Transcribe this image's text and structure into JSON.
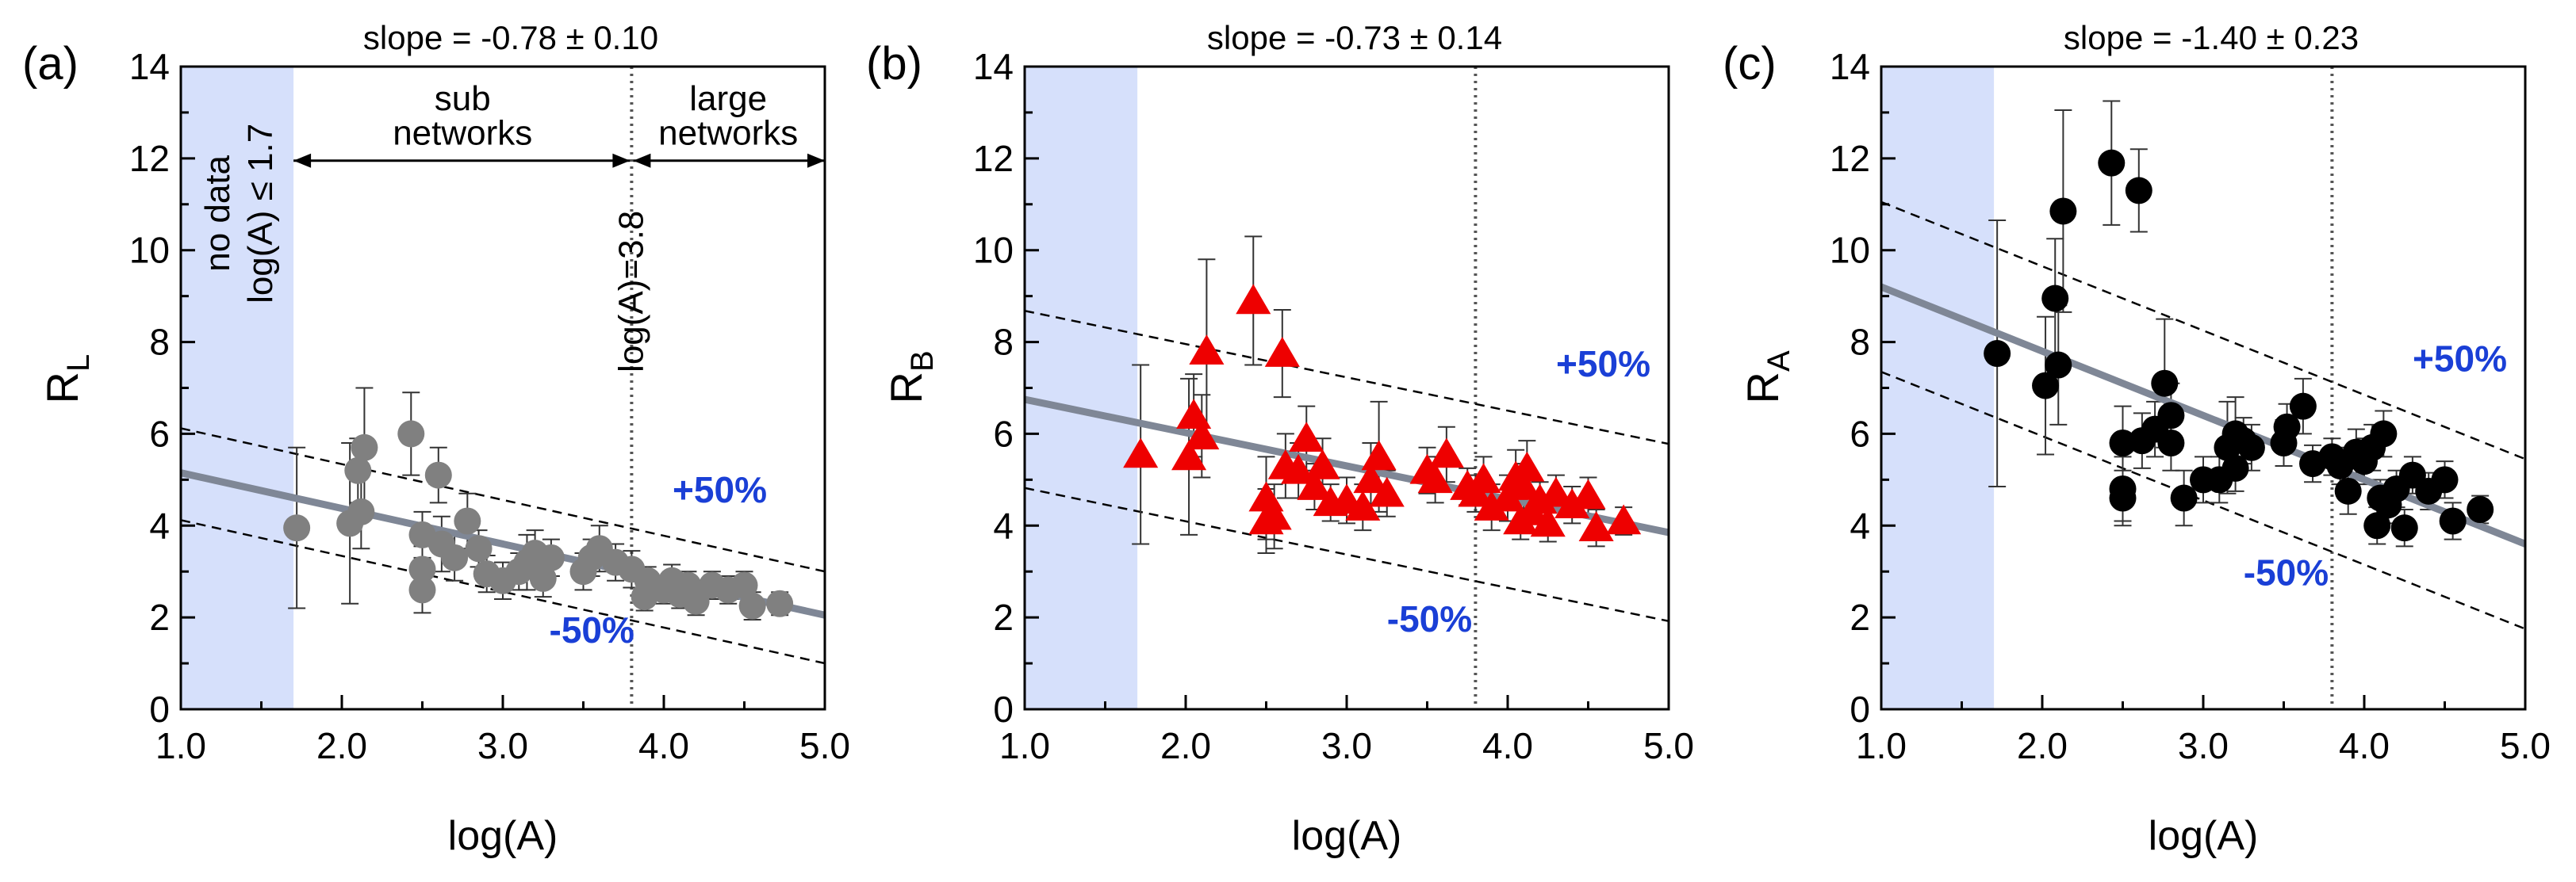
{
  "figure": {
    "x_axis_title": "log(A)",
    "x_ticks": [
      "1.0",
      "2.0",
      "3.0",
      "4.0",
      "5.0"
    ],
    "y_ticks": [
      "0",
      "2",
      "4",
      "6",
      "8",
      "10",
      "12",
      "14"
    ]
  },
  "chart_data": [
    {
      "type": "scatter",
      "panel_label": "(a)",
      "ylabel_main": "R",
      "ylabel_sub": "L",
      "xlabel": "log(A)",
      "slope_text": "slope = -0.78 ± 0.10",
      "xlim": [
        1.0,
        5.0
      ],
      "ylim": [
        0,
        14
      ],
      "color": "#808080",
      "fit_color": "#7f8796",
      "band_color": "#d6e0fb",
      "pct_color": "#1a3fd6",
      "marker": "circle",
      "no_data_band": [
        1.0,
        1.7
      ],
      "boundary_x": 3.8,
      "fit_line": {
        "x": [
          1.0,
          5.0
        ],
        "y": [
          5.15,
          2.05
        ]
      },
      "plus_line": {
        "x": [
          1.0,
          5.0
        ],
        "y": [
          6.12,
          3.0
        ]
      },
      "minus_line": {
        "x": [
          1.0,
          5.0
        ],
        "y": [
          4.12,
          1.0
        ]
      },
      "plus_label": "+50%",
      "minus_label": "-50%",
      "annotations": {
        "no_data_1": "no data",
        "no_data_2": "log(A) ≤ 1.7",
        "sub_1": "sub",
        "sub_2": "networks",
        "large_1": "large",
        "large_2": "networks",
        "boundary": "log(A)=3.8"
      },
      "points": [
        {
          "x": 1.72,
          "y": 3.95,
          "err": 1.75
        },
        {
          "x": 2.05,
          "y": 4.05,
          "err": 1.75
        },
        {
          "x": 2.1,
          "y": 5.2,
          "err": 0.7
        },
        {
          "x": 2.14,
          "y": 5.7,
          "err": 1.3
        },
        {
          "x": 2.12,
          "y": 4.3,
          "err": 0.8
        },
        {
          "x": 2.43,
          "y": 6.0,
          "err": 0.9
        },
        {
          "x": 2.5,
          "y": 3.8,
          "err": 0.5
        },
        {
          "x": 2.5,
          "y": 3.05,
          "err": 0.5
        },
        {
          "x": 2.5,
          "y": 2.6,
          "err": 0.5
        },
        {
          "x": 2.6,
          "y": 5.1,
          "err": 0.6
        },
        {
          "x": 2.62,
          "y": 3.6,
          "err": 0.6
        },
        {
          "x": 2.7,
          "y": 3.3,
          "err": 0.5
        },
        {
          "x": 2.78,
          "y": 4.1,
          "err": 0.6
        },
        {
          "x": 2.85,
          "y": 3.5,
          "err": 0.4
        },
        {
          "x": 2.9,
          "y": 2.95,
          "err": 0.4
        },
        {
          "x": 3.0,
          "y": 2.8,
          "err": 0.4
        },
        {
          "x": 3.1,
          "y": 3.0,
          "err": 0.4
        },
        {
          "x": 3.15,
          "y": 3.2,
          "err": 0.6
        },
        {
          "x": 3.2,
          "y": 3.4,
          "err": 0.5
        },
        {
          "x": 3.25,
          "y": 2.85,
          "err": 0.4
        },
        {
          "x": 3.3,
          "y": 3.3,
          "err": 0.4
        },
        {
          "x": 3.5,
          "y": 3.0,
          "err": 0.4
        },
        {
          "x": 3.55,
          "y": 3.3,
          "err": 0.4
        },
        {
          "x": 3.6,
          "y": 3.5,
          "err": 0.5
        },
        {
          "x": 3.7,
          "y": 3.2,
          "err": 0.4
        },
        {
          "x": 3.8,
          "y": 3.05,
          "err": 0.4
        },
        {
          "x": 3.88,
          "y": 2.45,
          "err": 0.3
        },
        {
          "x": 3.9,
          "y": 2.8,
          "err": 0.3
        },
        {
          "x": 4.0,
          "y": 2.6,
          "err": 0.3
        },
        {
          "x": 4.05,
          "y": 2.8,
          "err": 0.35
        },
        {
          "x": 4.1,
          "y": 2.5,
          "err": 0.3
        },
        {
          "x": 4.15,
          "y": 2.7,
          "err": 0.3
        },
        {
          "x": 4.2,
          "y": 2.35,
          "err": 0.3
        },
        {
          "x": 4.3,
          "y": 2.7,
          "err": 0.3
        },
        {
          "x": 4.4,
          "y": 2.6,
          "err": 0.3
        },
        {
          "x": 4.5,
          "y": 2.7,
          "err": 0.3
        },
        {
          "x": 4.55,
          "y": 2.25,
          "err": 0.3
        },
        {
          "x": 4.72,
          "y": 2.3,
          "err": 0.25
        }
      ]
    },
    {
      "type": "scatter",
      "panel_label": "(b)",
      "ylabel_main": "R",
      "ylabel_sub": "B",
      "xlabel": "log(A)",
      "slope_text": "slope = -0.73 ± 0.14",
      "xlim": [
        1.0,
        5.0
      ],
      "ylim": [
        0,
        14
      ],
      "color": "#ee0000",
      "fit_color": "#7f8796",
      "band_color": "#d6e0fb",
      "pct_color": "#1a3fd6",
      "marker": "triangle",
      "no_data_band": [
        1.0,
        1.7
      ],
      "boundary_x": 3.8,
      "fit_line": {
        "x": [
          1.0,
          5.0
        ],
        "y": [
          6.75,
          3.85
        ]
      },
      "plus_line": {
        "x": [
          1.0,
          5.0
        ],
        "y": [
          8.68,
          5.78
        ]
      },
      "minus_line": {
        "x": [
          1.0,
          5.0
        ],
        "y": [
          4.82,
          1.92
        ]
      },
      "plus_label": "+50%",
      "minus_label": "-50%",
      "points": [
        {
          "x": 1.72,
          "y": 5.55,
          "err": 1.95
        },
        {
          "x": 2.02,
          "y": 5.5,
          "err": 1.7
        },
        {
          "x": 2.05,
          "y": 6.4,
          "err": 0.9
        },
        {
          "x": 2.1,
          "y": 5.95,
          "err": 0.9
        },
        {
          "x": 2.13,
          "y": 7.8,
          "err": 2.0
        },
        {
          "x": 2.42,
          "y": 8.9,
          "err": 1.4
        },
        {
          "x": 2.5,
          "y": 4.6,
          "err": 0.9
        },
        {
          "x": 2.5,
          "y": 4.1,
          "err": 0.7
        },
        {
          "x": 2.55,
          "y": 4.2,
          "err": 0.7
        },
        {
          "x": 2.6,
          "y": 7.75,
          "err": 0.95
        },
        {
          "x": 2.62,
          "y": 5.3,
          "err": 0.7
        },
        {
          "x": 2.7,
          "y": 5.2,
          "err": 0.6
        },
        {
          "x": 2.75,
          "y": 5.9,
          "err": 0.7
        },
        {
          "x": 2.8,
          "y": 4.85,
          "err": 0.5
        },
        {
          "x": 2.85,
          "y": 5.3,
          "err": 0.6
        },
        {
          "x": 2.9,
          "y": 4.5,
          "err": 0.4
        },
        {
          "x": 3.0,
          "y": 4.55,
          "err": 0.5
        },
        {
          "x": 3.1,
          "y": 4.4,
          "err": 0.5
        },
        {
          "x": 3.15,
          "y": 5.0,
          "err": 0.8
        },
        {
          "x": 3.2,
          "y": 5.5,
          "err": 1.2
        },
        {
          "x": 3.25,
          "y": 4.7,
          "err": 0.5
        },
        {
          "x": 3.5,
          "y": 5.2,
          "err": 0.5
        },
        {
          "x": 3.55,
          "y": 5.0,
          "err": 0.5
        },
        {
          "x": 3.62,
          "y": 5.55,
          "err": 0.6
        },
        {
          "x": 3.75,
          "y": 4.85,
          "err": 0.4
        },
        {
          "x": 3.8,
          "y": 4.7,
          "err": 0.4
        },
        {
          "x": 3.85,
          "y": 5.0,
          "err": 0.5
        },
        {
          "x": 3.9,
          "y": 4.4,
          "err": 0.5
        },
        {
          "x": 4.0,
          "y": 4.6,
          "err": 0.5
        },
        {
          "x": 4.05,
          "y": 5.05,
          "err": 0.6
        },
        {
          "x": 4.08,
          "y": 4.1,
          "err": 0.4
        },
        {
          "x": 4.1,
          "y": 4.85,
          "err": 0.5
        },
        {
          "x": 4.12,
          "y": 5.25,
          "err": 0.6
        },
        {
          "x": 4.15,
          "y": 4.3,
          "err": 0.4
        },
        {
          "x": 4.2,
          "y": 4.55,
          "err": 0.4
        },
        {
          "x": 4.25,
          "y": 4.05,
          "err": 0.4
        },
        {
          "x": 4.3,
          "y": 4.7,
          "err": 0.4
        },
        {
          "x": 4.4,
          "y": 4.45,
          "err": 0.4
        },
        {
          "x": 4.5,
          "y": 4.65,
          "err": 0.4
        },
        {
          "x": 4.55,
          "y": 3.95,
          "err": 0.4
        },
        {
          "x": 4.72,
          "y": 4.1,
          "err": 0.3
        }
      ]
    },
    {
      "type": "scatter",
      "panel_label": "(c)",
      "ylabel_main": "R",
      "ylabel_sub": "A",
      "xlabel": "log(A)",
      "slope_text": "slope = -1.40 ± 0.23",
      "xlim": [
        1.0,
        5.0
      ],
      "ylim": [
        0,
        14
      ],
      "color": "#000000",
      "fit_color": "#7f8796",
      "band_color": "#d6e0fb",
      "pct_color": "#1a3fd6",
      "marker": "circle",
      "no_data_band": [
        1.0,
        1.7
      ],
      "boundary_x": 3.8,
      "fit_line": {
        "x": [
          1.0,
          5.0
        ],
        "y": [
          9.2,
          3.6
        ]
      },
      "plus_line": {
        "x": [
          1.0,
          5.0
        ],
        "y": [
          11.05,
          5.45
        ]
      },
      "minus_line": {
        "x": [
          1.0,
          5.0
        ],
        "y": [
          7.35,
          1.75
        ]
      },
      "plus_label": "+50%",
      "minus_label": "-50%",
      "points": [
        {
          "x": 1.72,
          "y": 7.75,
          "err": 2.9
        },
        {
          "x": 2.02,
          "y": 7.05,
          "err": 1.5
        },
        {
          "x": 2.08,
          "y": 8.95,
          "err": 1.3
        },
        {
          "x": 2.1,
          "y": 7.5,
          "err": 1.3
        },
        {
          "x": 2.13,
          "y": 10.85,
          "err": 2.2
        },
        {
          "x": 2.43,
          "y": 11.9,
          "err": 1.35
        },
        {
          "x": 2.5,
          "y": 5.8,
          "err": 0.8
        },
        {
          "x": 2.5,
          "y": 4.8,
          "err": 0.7
        },
        {
          "x": 2.5,
          "y": 4.6,
          "err": 0.6
        },
        {
          "x": 2.6,
          "y": 11.3,
          "err": 0.9
        },
        {
          "x": 2.62,
          "y": 5.85,
          "err": 0.6
        },
        {
          "x": 2.7,
          "y": 6.1,
          "err": 0.6
        },
        {
          "x": 2.76,
          "y": 7.1,
          "err": 1.4
        },
        {
          "x": 2.8,
          "y": 5.8,
          "err": 0.6
        },
        {
          "x": 2.8,
          "y": 6.4,
          "err": 0.7
        },
        {
          "x": 2.88,
          "y": 4.6,
          "err": 0.6
        },
        {
          "x": 3.0,
          "y": 5.0,
          "err": 0.5
        },
        {
          "x": 3.1,
          "y": 5.0,
          "err": 0.5
        },
        {
          "x": 3.15,
          "y": 5.7,
          "err": 1.0
        },
        {
          "x": 3.2,
          "y": 6.0,
          "err": 0.8
        },
        {
          "x": 3.2,
          "y": 5.25,
          "err": 0.5
        },
        {
          "x": 3.25,
          "y": 5.85,
          "err": 0.5
        },
        {
          "x": 3.3,
          "y": 5.7,
          "err": 0.5
        },
        {
          "x": 3.5,
          "y": 5.8,
          "err": 0.5
        },
        {
          "x": 3.52,
          "y": 6.15,
          "err": 0.5
        },
        {
          "x": 3.62,
          "y": 6.6,
          "err": 0.6
        },
        {
          "x": 3.68,
          "y": 5.35,
          "err": 0.4
        },
        {
          "x": 3.8,
          "y": 5.5,
          "err": 0.4
        },
        {
          "x": 3.85,
          "y": 5.3,
          "err": 0.4
        },
        {
          "x": 3.9,
          "y": 4.75,
          "err": 0.5
        },
        {
          "x": 3.95,
          "y": 5.6,
          "err": 0.5
        },
        {
          "x": 4.0,
          "y": 5.4,
          "err": 0.5
        },
        {
          "x": 4.05,
          "y": 5.7,
          "err": 0.5
        },
        {
          "x": 4.08,
          "y": 4.0,
          "err": 0.4
        },
        {
          "x": 4.1,
          "y": 4.6,
          "err": 0.4
        },
        {
          "x": 4.12,
          "y": 6.0,
          "err": 0.5
        },
        {
          "x": 4.15,
          "y": 4.45,
          "err": 0.4
        },
        {
          "x": 4.2,
          "y": 4.8,
          "err": 0.4
        },
        {
          "x": 4.25,
          "y": 3.95,
          "err": 0.4
        },
        {
          "x": 4.3,
          "y": 5.1,
          "err": 0.4
        },
        {
          "x": 4.4,
          "y": 4.75,
          "err": 0.4
        },
        {
          "x": 4.5,
          "y": 5.0,
          "err": 0.4
        },
        {
          "x": 4.55,
          "y": 4.1,
          "err": 0.4
        },
        {
          "x": 4.72,
          "y": 4.35,
          "err": 0.3
        }
      ]
    }
  ]
}
